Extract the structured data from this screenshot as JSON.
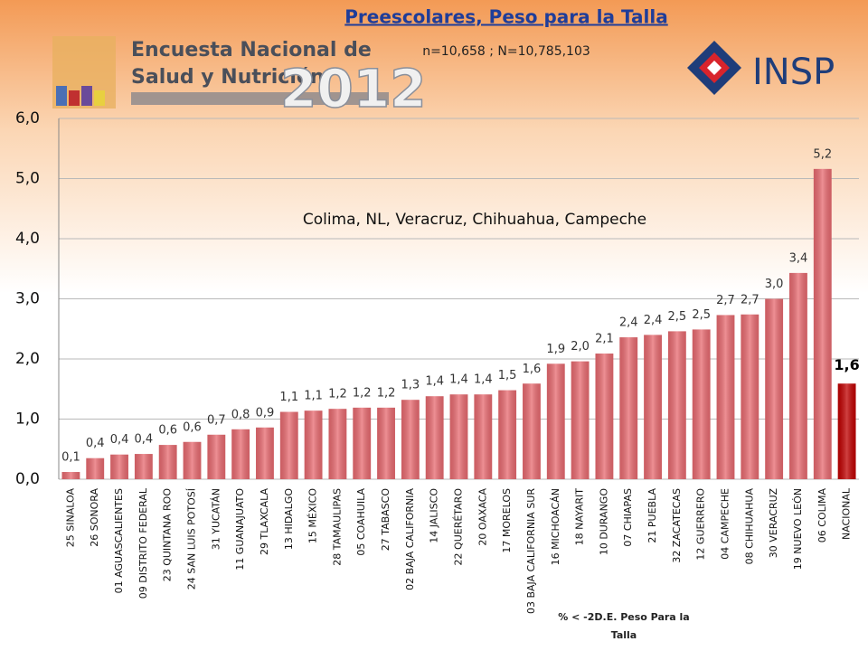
{
  "header": {
    "survey_line1": "Encuesta Nacional de",
    "survey_line2": "Salud y Nutrición",
    "year": "2012",
    "institute": "INSP"
  },
  "chart_data": {
    "type": "bar",
    "title": "Preescolares, Peso para la Talla",
    "subtitle": "n=10,658 ; N=10,785,103",
    "annotation": "Colima, NL, Veracruz, Chihuahua, Campeche",
    "x_label": "% < -2D.E. Peso Para la Talla",
    "categories": [
      "25 SINALOA",
      "26 SONORA",
      "01 AGUASCALIENTES",
      "09 DISTRITO FEDERAL",
      "23 QUINTANA ROO",
      "24 SAN LUIS POTOSÍ",
      "31 YUCATÁN",
      "11 GUANAJUATO",
      "29 TLAXCALA",
      "13 HIDALGO",
      "15 MÉXICO",
      "28 TAMAULIPAS",
      "05 COAHUILA",
      "27 TABASCO",
      "02 BAJA CALIFORNIA",
      "14 JALISCO",
      "22 QUERÉTARO",
      "20 OAXACA",
      "17 MORELOS",
      "03 BAJA CALIFORNIA SUR",
      "16 MICHOACÁN",
      "18 NAYARIT",
      "10 DURANGO",
      "07 CHIAPAS",
      "21 PUEBLA",
      "32 ZACATECAS",
      "12 GUERRERO",
      "04 CAMPECHE",
      "08 CHIHUAHUA",
      "30 VERACRUZ",
      "19 NUEVO LEÓN",
      "06 COLIMA",
      "NACIONAL"
    ],
    "values": [
      0.12,
      0.35,
      0.41,
      0.42,
      0.57,
      0.62,
      0.74,
      0.83,
      0.86,
      1.12,
      1.14,
      1.17,
      1.19,
      1.19,
      1.32,
      1.38,
      1.41,
      1.41,
      1.48,
      1.59,
      1.92,
      1.96,
      2.09,
      2.36,
      2.4,
      2.46,
      2.49,
      2.73,
      2.74,
      3.0,
      3.43,
      5.16,
      1.59
    ],
    "value_labels": [
      "0,1",
      "0,4",
      "0,4",
      "0,4",
      "0,6",
      "0,6",
      "0,7",
      "0,8",
      "0,9",
      "1,1",
      "1,1",
      "1,2",
      "1,2",
      "1,2",
      "1,3",
      "1,4",
      "1,4",
      "1,4",
      "1,5",
      "1,6",
      "1,9",
      "2,0",
      "2,1",
      "2,4",
      "2,4",
      "2,5",
      "2,5",
      "2,7",
      "2,7",
      "3,0",
      "3,4",
      "5,2",
      "1,6"
    ],
    "colors": [
      "#e86a70",
      "#e86a70",
      "#e86a70",
      "#e86a70",
      "#e86a70",
      "#e86a70",
      "#e86a70",
      "#e86a70",
      "#e86a70",
      "#e86a70",
      "#e86a70",
      "#e86a70",
      "#e86a70",
      "#e86a70",
      "#e86a70",
      "#e86a70",
      "#e86a70",
      "#e86a70",
      "#e86a70",
      "#e86a70",
      "#e86a70",
      "#e86a70",
      "#e86a70",
      "#e86a70",
      "#e86a70",
      "#e86a70",
      "#e86a70",
      "#e86a70",
      "#e86a70",
      "#e86a70",
      "#e86a70",
      "#e86a70",
      "#c00000"
    ],
    "ylim": [
      0,
      6
    ],
    "yticks": [
      {
        "value": 0,
        "label": "0,0"
      },
      {
        "value": 1,
        "label": "1,0"
      },
      {
        "value": 2,
        "label": "2,0"
      },
      {
        "value": 3,
        "label": "3,0"
      },
      {
        "value": 4,
        "label": "4,0"
      },
      {
        "value": 5,
        "label": "5,0"
      },
      {
        "value": 6,
        "label": "6,0"
      }
    ],
    "grid": true
  }
}
